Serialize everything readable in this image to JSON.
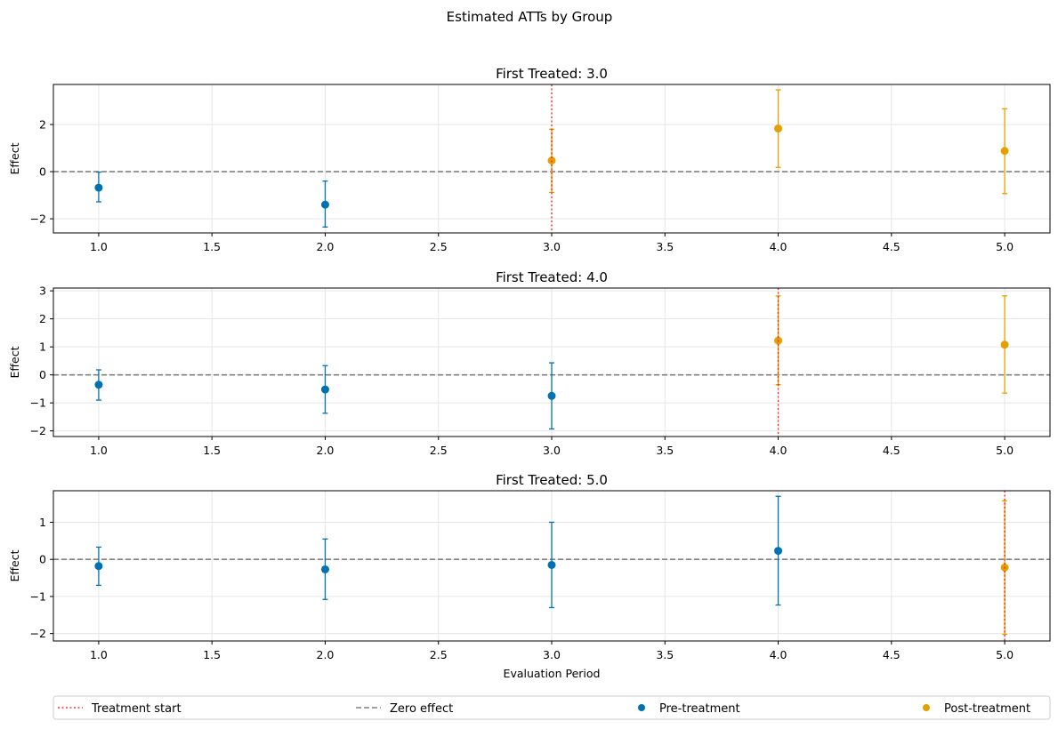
{
  "figure": {
    "suptitle": "Estimated ATTs by Group"
  },
  "legend": {
    "placement": "bottom",
    "items": [
      {
        "label": "Treatment start",
        "style": "dotted-line",
        "color": "#ff0000"
      },
      {
        "label": "Zero effect",
        "style": "dashed-line",
        "color": "#808080"
      },
      {
        "label": "Pre-treatment",
        "style": "marker",
        "color": "#0072b2"
      },
      {
        "label": "Post-treatment",
        "style": "marker",
        "color": "#e69f00"
      }
    ]
  },
  "colors": {
    "pre": "#0072b2",
    "post": "#e69f00",
    "treatment_line": "#ff0000",
    "zero_line": "#808080",
    "grid": "#e6e6e6"
  },
  "chart_data": [
    {
      "type": "scatter",
      "title": "First Treated: 3.0",
      "xlabel": "",
      "ylabel": "Effect",
      "xlim": [
        0.8,
        5.2
      ],
      "ylim": [
        -2.6,
        3.7
      ],
      "xticks": [
        1.0,
        1.5,
        2.0,
        2.5,
        3.0,
        3.5,
        4.0,
        4.5,
        5.0
      ],
      "xtick_labels": [
        "1.0",
        "1.5",
        "2.0",
        "2.5",
        "3.0",
        "3.5",
        "4.0",
        "4.5",
        "5.0"
      ],
      "yticks": [
        -2,
        0,
        2
      ],
      "ytick_labels": [
        "−2",
        "0",
        "2"
      ],
      "grid": true,
      "treatment_start": 3.0,
      "zero_line": 0,
      "points": [
        {
          "x": 1.0,
          "y": -0.68,
          "lo": -1.28,
          "hi": -0.02,
          "period": "pre"
        },
        {
          "x": 2.0,
          "y": -1.4,
          "lo": -2.35,
          "hi": -0.4,
          "period": "pre"
        },
        {
          "x": 3.0,
          "y": 0.47,
          "lo": -0.88,
          "hi": 1.8,
          "period": "post"
        },
        {
          "x": 4.0,
          "y": 1.83,
          "lo": 0.18,
          "hi": 3.47,
          "period": "post"
        },
        {
          "x": 5.0,
          "y": 0.88,
          "lo": -0.93,
          "hi": 2.67,
          "period": "post"
        }
      ]
    },
    {
      "type": "scatter",
      "title": "First Treated: 4.0",
      "xlabel": "",
      "ylabel": "Effect",
      "xlim": [
        0.8,
        5.2
      ],
      "ylim": [
        -2.2,
        3.1
      ],
      "xticks": [
        1.0,
        1.5,
        2.0,
        2.5,
        3.0,
        3.5,
        4.0,
        4.5,
        5.0
      ],
      "xtick_labels": [
        "1.0",
        "1.5",
        "2.0",
        "2.5",
        "3.0",
        "3.5",
        "4.0",
        "4.5",
        "5.0"
      ],
      "yticks": [
        -2,
        -1,
        0,
        1,
        2,
        3
      ],
      "ytick_labels": [
        "−2",
        "−1",
        "0",
        "1",
        "2",
        "3"
      ],
      "grid": true,
      "treatment_start": 4.0,
      "zero_line": 0,
      "points": [
        {
          "x": 1.0,
          "y": -0.35,
          "lo": -0.9,
          "hi": 0.18,
          "period": "pre"
        },
        {
          "x": 2.0,
          "y": -0.52,
          "lo": -1.37,
          "hi": 0.33,
          "period": "pre"
        },
        {
          "x": 3.0,
          "y": -0.75,
          "lo": -1.93,
          "hi": 0.43,
          "period": "pre"
        },
        {
          "x": 4.0,
          "y": 1.22,
          "lo": -0.35,
          "hi": 2.82,
          "period": "post"
        },
        {
          "x": 5.0,
          "y": 1.08,
          "lo": -0.65,
          "hi": 2.82,
          "period": "post"
        }
      ]
    },
    {
      "type": "scatter",
      "title": "First Treated: 5.0",
      "xlabel": "Evaluation Period",
      "ylabel": "Effect",
      "xlim": [
        0.8,
        5.2
      ],
      "ylim": [
        -2.2,
        1.85
      ],
      "xticks": [
        1.0,
        1.5,
        2.0,
        2.5,
        3.0,
        3.5,
        4.0,
        4.5,
        5.0
      ],
      "xtick_labels": [
        "1.0",
        "1.5",
        "2.0",
        "2.5",
        "3.0",
        "3.5",
        "4.0",
        "4.5",
        "5.0"
      ],
      "yticks": [
        -2,
        -1,
        0,
        1
      ],
      "ytick_labels": [
        "−2",
        "−1",
        "0",
        "1"
      ],
      "grid": true,
      "treatment_start": 5.0,
      "zero_line": 0,
      "points": [
        {
          "x": 1.0,
          "y": -0.18,
          "lo": -0.7,
          "hi": 0.33,
          "period": "pre"
        },
        {
          "x": 2.0,
          "y": -0.27,
          "lo": -1.08,
          "hi": 0.55,
          "period": "pre"
        },
        {
          "x": 3.0,
          "y": -0.15,
          "lo": -1.3,
          "hi": 1.0,
          "period": "pre"
        },
        {
          "x": 4.0,
          "y": 0.23,
          "lo": -1.23,
          "hi": 1.7,
          "period": "pre"
        },
        {
          "x": 5.0,
          "y": -0.22,
          "lo": -2.02,
          "hi": 1.58,
          "period": "post"
        }
      ]
    }
  ]
}
